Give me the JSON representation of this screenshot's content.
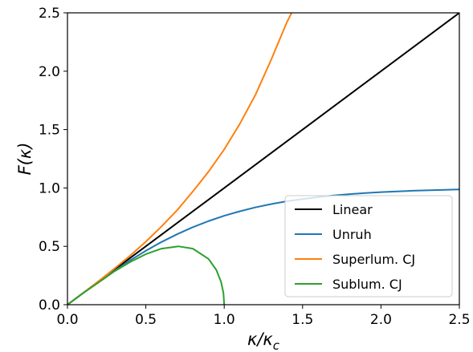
{
  "chart_data": {
    "type": "line",
    "xlabel": "κ/κ_c",
    "ylabel": "F(κ)",
    "xlim": [
      0.0,
      2.5
    ],
    "ylim": [
      0.0,
      2.5
    ],
    "x_ticks": [
      "0.0",
      "0.5",
      "1.0",
      "1.5",
      "2.0",
      "2.5"
    ],
    "y_ticks": [
      "0.0",
      "0.5",
      "1.0",
      "1.5",
      "2.0",
      "2.5"
    ],
    "grid": false,
    "legend_position": "lower-right",
    "series": [
      {
        "name": "Linear",
        "color": "#000000",
        "points": [
          [
            0.0,
            0.0
          ],
          [
            2.5,
            2.5
          ]
        ]
      },
      {
        "name": "Unruh",
        "color": "#1f77b4",
        "points": [
          [
            0.0,
            0.0
          ],
          [
            0.1,
            0.1
          ],
          [
            0.2,
            0.197
          ],
          [
            0.3,
            0.29
          ],
          [
            0.4,
            0.38
          ],
          [
            0.5,
            0.462
          ],
          [
            0.6,
            0.537
          ],
          [
            0.7,
            0.604
          ],
          [
            0.8,
            0.664
          ],
          [
            0.9,
            0.716
          ],
          [
            1.0,
            0.762
          ],
          [
            1.1,
            0.8
          ],
          [
            1.2,
            0.834
          ],
          [
            1.3,
            0.862
          ],
          [
            1.4,
            0.886
          ],
          [
            1.5,
            0.905
          ],
          [
            1.6,
            0.922
          ],
          [
            1.7,
            0.936
          ],
          [
            1.8,
            0.947
          ],
          [
            1.9,
            0.956
          ],
          [
            2.0,
            0.964
          ],
          [
            2.2,
            0.976
          ],
          [
            2.5,
            0.987
          ]
        ]
      },
      {
        "name": "Superlum. CJ",
        "color": "#ff7f0e",
        "points": [
          [
            0.0,
            0.0
          ],
          [
            0.1,
            0.1
          ],
          [
            0.2,
            0.203
          ],
          [
            0.3,
            0.31
          ],
          [
            0.4,
            0.42
          ],
          [
            0.5,
            0.54
          ],
          [
            0.6,
            0.67
          ],
          [
            0.7,
            0.81
          ],
          [
            0.8,
            0.97
          ],
          [
            0.9,
            1.14
          ],
          [
            1.0,
            1.33
          ],
          [
            1.1,
            1.55
          ],
          [
            1.2,
            1.8
          ],
          [
            1.3,
            2.1
          ],
          [
            1.4,
            2.42
          ],
          [
            1.43,
            2.5
          ]
        ]
      },
      {
        "name": "Sublum. CJ",
        "color": "#2ca02c",
        "points": [
          [
            0.0,
            0.0
          ],
          [
            0.1,
            0.099
          ],
          [
            0.2,
            0.192
          ],
          [
            0.3,
            0.286
          ],
          [
            0.4,
            0.366
          ],
          [
            0.5,
            0.433
          ],
          [
            0.6,
            0.48
          ],
          [
            0.707,
            0.5
          ],
          [
            0.8,
            0.48
          ],
          [
            0.9,
            0.392
          ],
          [
            0.95,
            0.297
          ],
          [
            0.98,
            0.195
          ],
          [
            0.995,
            0.1
          ],
          [
            1.0,
            0.0
          ]
        ]
      }
    ]
  }
}
